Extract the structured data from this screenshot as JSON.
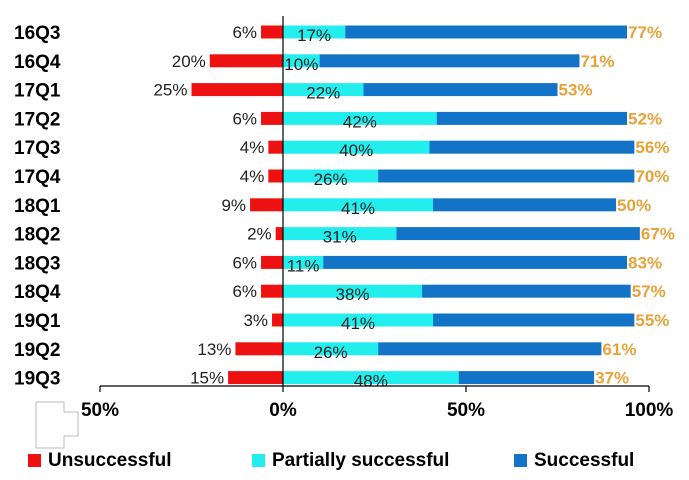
{
  "chart_data": {
    "type": "bar",
    "orientation": "horizontal",
    "stacked": true,
    "categories": [
      "16Q3",
      "16Q4",
      "17Q1",
      "17Q2",
      "17Q3",
      "17Q4",
      "18Q1",
      "18Q2",
      "18Q3",
      "18Q4",
      "19Q1",
      "19Q2",
      "19Q3"
    ],
    "series": [
      {
        "name": "Unsuccessful",
        "color": "#ee1111",
        "values": [
          -6,
          -20,
          -25,
          -6,
          -4,
          -4,
          -9,
          -2,
          -6,
          -6,
          -3,
          -13,
          -15
        ],
        "labels": [
          "6%",
          "20%",
          "25%",
          "6%",
          "4%",
          "4%",
          "9%",
          "2%",
          "6%",
          "6%",
          "3%",
          "13%",
          "15%"
        ]
      },
      {
        "name": "Partially successful",
        "color": "#22eeee",
        "values": [
          17,
          10,
          22,
          42,
          40,
          26,
          41,
          31,
          11,
          38,
          41,
          26,
          48
        ],
        "labels": [
          "17%",
          "10%",
          "22%",
          "42%",
          "40%",
          "26%",
          "41%",
          "31%",
          "11%",
          "38%",
          "41%",
          "26%",
          "48%"
        ]
      },
      {
        "name": "Successful",
        "color": "#1273c7",
        "label_color": "#e8a23a",
        "values": [
          77,
          71,
          53,
          52,
          56,
          70,
          50,
          67,
          83,
          57,
          55,
          61,
          37
        ],
        "labels": [
          "77%",
          "71%",
          "53%",
          "52%",
          "56%",
          "70%",
          "50%",
          "67%",
          "83%",
          "57%",
          "55%",
          "61%",
          "37%"
        ]
      }
    ],
    "xlim": [
      -50,
      100
    ],
    "xticks": [
      -50,
      0,
      50,
      100
    ],
    "xtick_labels": [
      "50%",
      "0%",
      "50%",
      "100%"
    ],
    "grid": false,
    "legend_position": "bottom",
    "title": "",
    "xlabel": "",
    "ylabel": ""
  }
}
